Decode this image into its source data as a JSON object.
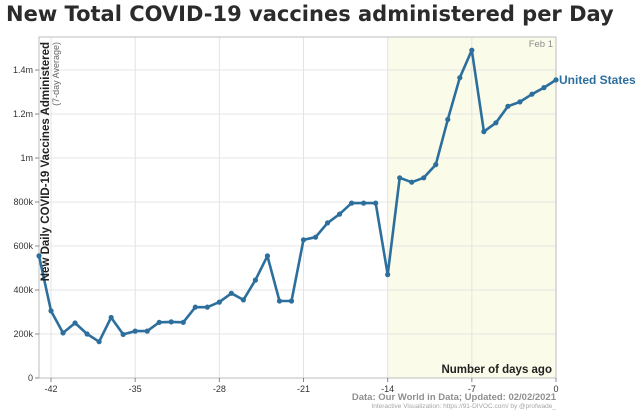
{
  "chart_data": {
    "type": "line",
    "title": "New Total COVID-19 vaccines administered per Day",
    "ylabel": "New Daily COVID-19 Vaccines Administered",
    "ylabel_sub": "(7-day Average)",
    "xlabel": "Number of days ago",
    "date_label": "Feb 1",
    "source_line1": "Data: Our World in Data; Updated: 02/02/2021",
    "source_line2": "Interactive Visualization: https://91-DIVOC.com/ by @profwade_",
    "xlim": [
      -43,
      0
    ],
    "ylim": [
      0,
      1550000
    ],
    "x_ticks": [
      -42,
      -35,
      -28,
      -21,
      -14,
      -7,
      0
    ],
    "x_tick_labels": [
      "-42",
      "-35",
      "-28",
      "-21",
      "-14",
      "-7",
      "0"
    ],
    "y_ticks": [
      0,
      200000,
      400000,
      600000,
      800000,
      1000000,
      1200000,
      1400000
    ],
    "y_tick_labels": [
      "0",
      "200k",
      "400k",
      "600k",
      "800k",
      "1m",
      "1.2m",
      "1.4m"
    ],
    "shaded_x_start": -14,
    "colors": {
      "line": "#2c6f9d",
      "shade": "#fbfbea"
    },
    "series": [
      {
        "name": "United States",
        "x": [
          -43,
          -42,
          -41,
          -40,
          -39,
          -38,
          -37,
          -36,
          -35,
          -34,
          -33,
          -32,
          -31,
          -30,
          -29,
          -28,
          -27,
          -26,
          -25,
          -24,
          -23,
          -22,
          -21,
          -20,
          -19,
          -18,
          -17,
          -16,
          -15,
          -14,
          -13,
          -12,
          -11,
          -10,
          -9,
          -8,
          -7,
          -6,
          -5,
          -4,
          -3,
          -2,
          -1,
          0
        ],
        "values": [
          555000,
          305000,
          205000,
          250000,
          200000,
          165000,
          275000,
          198000,
          213000,
          213000,
          253000,
          255000,
          253000,
          322000,
          322000,
          345000,
          385000,
          355000,
          445000,
          555000,
          350000,
          350000,
          628000,
          640000,
          705000,
          745000,
          795000,
          795000,
          795000,
          470000,
          910000,
          890000,
          910000,
          970000,
          1175000,
          1365000,
          1490000,
          1120000,
          1160000,
          1235000,
          1255000,
          1290000,
          1320000,
          1355000
        ]
      }
    ]
  }
}
